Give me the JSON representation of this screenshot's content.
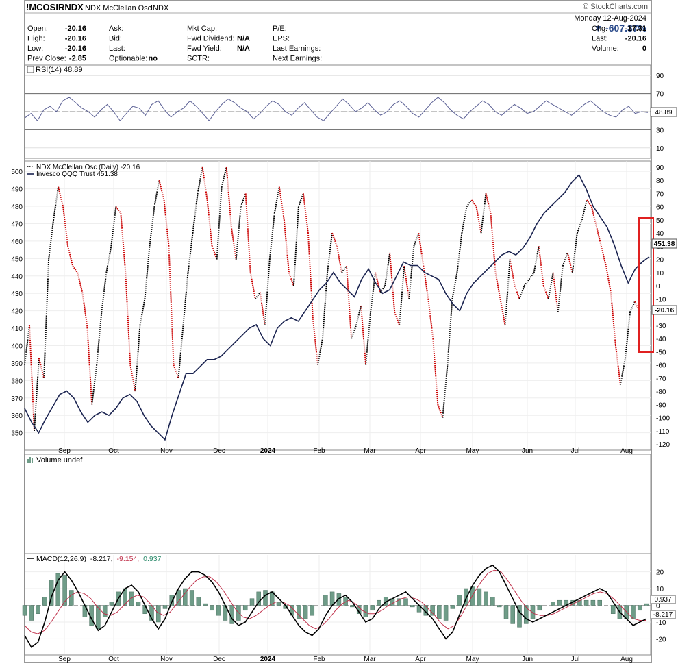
{
  "header": {
    "symbol": "!MCOSIRNDX",
    "name": "NDX McClellan Osc",
    "exchange": "INDX",
    "watermark": "© StockCharts.com",
    "date": "Monday  12-Aug-2024",
    "pct_change": "▼ -607.37%",
    "quote_rows": [
      {
        "l1": "Open:",
        "v1": "-20.16",
        "l2": "Ask:",
        "v2": "",
        "l3": "Mkt Cap:",
        "v3": "",
        "l4": "P/E:",
        "v4": "",
        "l5": "Chg:",
        "v5": "-17.31"
      },
      {
        "l1": "High:",
        "v1": "-20.16",
        "l2": "Bid:",
        "v2": "",
        "l3": "Fwd Dividend:",
        "v3": "N/A",
        "l4": "EPS:",
        "v4": "",
        "l5": "Last:",
        "v5": "-20.16"
      },
      {
        "l1": "Low:",
        "v1": "-20.16",
        "l2": "Last:",
        "v2": "",
        "l3": "Fwd Yield:",
        "v3": "N/A",
        "l4": "Last Earnings:",
        "v4": "",
        "l5": "Volume:",
        "v5": "0"
      },
      {
        "l1": "Prev Close:",
        "v1": "-2.85",
        "l2": "Optionable:",
        "v2": "no",
        "l3": "SCTR:",
        "v3": "",
        "l4": "Next Earnings:",
        "v4": "",
        "l5": "",
        "": ""
      }
    ]
  },
  "chart_data": [
    {
      "type": "line",
      "panel": "rsi",
      "title": "RSI(14) 48.89",
      "y_ticks": [
        10,
        30,
        50,
        70,
        90
      ],
      "ylim": [
        0,
        100
      ],
      "last_label": "48.89",
      "series": [
        {
          "values": [
            43,
            48,
            40,
            52,
            56,
            50,
            62,
            66,
            60,
            54,
            50,
            44,
            52,
            58,
            50,
            40,
            48,
            56,
            54,
            46,
            58,
            62,
            52,
            44,
            50,
            54,
            62,
            56,
            48,
            40,
            50,
            58,
            64,
            60,
            54,
            50,
            42,
            48,
            56,
            62,
            58,
            50,
            46,
            54,
            60,
            52,
            44,
            40,
            48,
            56,
            64,
            58,
            50,
            54,
            60,
            52,
            46,
            50,
            58,
            62,
            56,
            48,
            44,
            52,
            60,
            66,
            60,
            52,
            46,
            42,
            50,
            56,
            62,
            58,
            50,
            46,
            52,
            58,
            54,
            48,
            50,
            56,
            62,
            58,
            54,
            50,
            46,
            52,
            58,
            62,
            56,
            50,
            46,
            44,
            52,
            56,
            48,
            50,
            49
          ]
        }
      ]
    },
    {
      "type": "line",
      "panel": "price",
      "title": "NDX McClellan Osc (Daily) -20.16",
      "x_labels": [
        "Sep",
        "Oct",
        "Nov",
        "Dec",
        "2024",
        "Feb",
        "Mar",
        "Apr",
        "May",
        "Jun",
        "Jul",
        "Aug"
      ],
      "left_ticks": [
        350,
        360,
        370,
        380,
        390,
        400,
        410,
        420,
        430,
        440,
        450,
        460,
        470,
        480,
        490,
        500
      ],
      "right_ticks": [
        90,
        80,
        70,
        60,
        50,
        40,
        30,
        20,
        10,
        0,
        -10,
        -20,
        -30,
        -40,
        -50,
        -60,
        -70,
        -80,
        -90,
        -100,
        -110,
        -120
      ],
      "left_ylim": [
        342,
        504
      ],
      "right_ylim": [
        -122,
        92
      ],
      "series": [
        {
          "name": "NDX McClellan Osc (Daily) -20.16",
          "axis": "right",
          "style": "dotted-red-black",
          "values": [
            -60,
            -30,
            -110,
            -55,
            -70,
            20,
            50,
            75,
            60,
            30,
            15,
            10,
            -5,
            -30,
            -90,
            -60,
            -20,
            10,
            30,
            60,
            55,
            10,
            -60,
            -80,
            -30,
            -10,
            30,
            60,
            80,
            65,
            30,
            -60,
            -70,
            -30,
            10,
            40,
            70,
            90,
            65,
            30,
            20,
            75,
            90,
            45,
            20,
            60,
            70,
            10,
            -10,
            -5,
            -30,
            20,
            55,
            75,
            50,
            10,
            0,
            60,
            70,
            40,
            -25,
            -60,
            -40,
            10,
            40,
            30,
            10,
            15,
            -40,
            -30,
            -15,
            -60,
            -20,
            10,
            -5,
            0,
            25,
            -20,
            -30,
            15,
            -10,
            30,
            40,
            15,
            -10,
            -40,
            -90,
            -100,
            -60,
            -10,
            10,
            40,
            60,
            65,
            60,
            40,
            70,
            55,
            10,
            -10,
            -30,
            20,
            0,
            -10,
            0,
            5,
            10,
            30,
            0,
            -10,
            10,
            -20,
            15,
            25,
            10,
            40,
            50,
            65,
            60,
            45,
            30,
            15,
            -5,
            -45,
            -75,
            -55,
            -20,
            -12,
            -20
          ]
        },
        {
          "name": "Invesco QQQ Trust 451.38",
          "axis": "left",
          "style": "solid-navy",
          "values": [
            364,
            356,
            350,
            358,
            365,
            372,
            374,
            370,
            362,
            356,
            360,
            362,
            360,
            364,
            370,
            372,
            368,
            360,
            354,
            350,
            346,
            360,
            372,
            384,
            384,
            388,
            392,
            392,
            394,
            398,
            402,
            406,
            410,
            412,
            404,
            400,
            410,
            414,
            416,
            414,
            420,
            426,
            432,
            436,
            442,
            436,
            432,
            428,
            438,
            444,
            436,
            430,
            432,
            440,
            448,
            446,
            446,
            442,
            440,
            438,
            430,
            424,
            420,
            430,
            436,
            440,
            444,
            448,
            452,
            454,
            452,
            456,
            462,
            470,
            476,
            480,
            484,
            488,
            494,
            498,
            490,
            480,
            474,
            468,
            458,
            446,
            436,
            444,
            448,
            451
          ]
        }
      ]
    },
    {
      "type": "bar",
      "panel": "volume",
      "title": "Volume undef",
      "series": []
    },
    {
      "type": "line",
      "panel": "macd",
      "title_prefix": "MACD(12,26,9)",
      "title_parts": [
        "-8.217,",
        "-9.154,",
        "0.937"
      ],
      "y_ticks": [
        20,
        10,
        0,
        -10,
        -20
      ],
      "ylim": [
        -28,
        28
      ],
      "last_labels": [
        "0.937",
        "-8.217"
      ],
      "series": [
        {
          "name": "MACD",
          "values": [
            -18,
            -25,
            -22,
            -10,
            5,
            15,
            20,
            15,
            8,
            0,
            -8,
            -15,
            -12,
            -4,
            4,
            10,
            12,
            8,
            0,
            -8,
            -14,
            -8,
            2,
            10,
            16,
            20,
            20,
            18,
            14,
            8,
            0,
            -8,
            -12,
            -10,
            -4,
            2,
            6,
            8,
            4,
            0,
            -6,
            -12,
            -16,
            -18,
            -14,
            -6,
            0,
            4,
            6,
            2,
            -4,
            -10,
            -8,
            -2,
            2,
            4,
            6,
            8,
            4,
            0,
            -4,
            -8,
            -14,
            -20,
            -16,
            -6,
            4,
            12,
            18,
            22,
            24,
            20,
            12,
            4,
            -4,
            -8,
            -10,
            -8,
            -6,
            -4,
            -2,
            0,
            2,
            4,
            6,
            8,
            10,
            8,
            2,
            -4,
            -8,
            -12,
            -10,
            -8
          ]
        },
        {
          "name": "Signal",
          "values": [
            -12,
            -16,
            -17,
            -15,
            -10,
            -4,
            2,
            6,
            8,
            7,
            4,
            -1,
            -5,
            -6,
            -4,
            0,
            4,
            6,
            5,
            1,
            -4,
            -6,
            -4,
            1,
            6,
            11,
            15,
            17,
            17,
            14,
            9,
            3,
            -3,
            -7,
            -8,
            -6,
            -3,
            0,
            2,
            2,
            0,
            -4,
            -8,
            -12,
            -14,
            -12,
            -8,
            -3,
            1,
            3,
            1,
            -3,
            -5,
            -5,
            -3,
            0,
            2,
            4,
            5,
            4,
            2,
            -2,
            -6,
            -11,
            -14,
            -12,
            -6,
            1,
            8,
            14,
            19,
            21,
            20,
            15,
            9,
            3,
            -2,
            -5,
            -6,
            -6,
            -5,
            -3,
            -1,
            1,
            3,
            5,
            7,
            8,
            7,
            4,
            0,
            -4,
            -8,
            -9,
            -9
          ]
        },
        {
          "name": "Histogram",
          "values": [
            -6,
            -9,
            -5,
            5,
            15,
            19,
            18,
            9,
            0,
            -7,
            -12,
            -14,
            -7,
            2,
            8,
            10,
            8,
            2,
            -5,
            -9,
            -10,
            -2,
            6,
            9,
            10,
            9,
            5,
            1,
            -3,
            -6,
            -9,
            -11,
            -9,
            -3,
            4,
            8,
            9,
            8,
            2,
            -2,
            -6,
            -8,
            -8,
            -6,
            0,
            6,
            8,
            7,
            5,
            -1,
            -5,
            -7,
            -3,
            3,
            5,
            4,
            4,
            4,
            -1,
            -4,
            -6,
            -6,
            -8,
            -9,
            -2,
            6,
            10,
            11,
            10,
            8,
            5,
            -1,
            -8,
            -11,
            -13,
            -11,
            -8,
            -3,
            0,
            2,
            3,
            3,
            3,
            3,
            3,
            3,
            3,
            0,
            -5,
            -8,
            -8,
            -8,
            -3,
            1
          ]
        }
      ]
    }
  ],
  "colors": {
    "frame": "#888888",
    "grid": "#dcdcdc",
    "price_line": "#1a2350",
    "osc_up": "#000000",
    "osc_down": "#cc0000",
    "rsi_line": "#5a5f94",
    "macd_line": "#000000",
    "signal_line": "#c0304a",
    "hist_fill": "#6f9c88",
    "highlight_box": "#e02020",
    "pct_color": "#2a4a8a",
    "title3_color": "#2a8a6a"
  }
}
